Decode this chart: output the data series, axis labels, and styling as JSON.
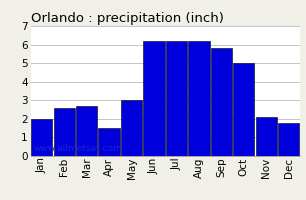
{
  "title": "Orlando : precipitation (inch)",
  "months": [
    "Jan",
    "Feb",
    "Mar",
    "Apr",
    "May",
    "Jun",
    "Jul",
    "Aug",
    "Sep",
    "Oct",
    "Nov",
    "Dec"
  ],
  "values": [
    2.0,
    2.6,
    2.7,
    1.5,
    3.0,
    6.2,
    6.2,
    6.2,
    5.8,
    5.0,
    2.1,
    1.8
  ],
  "bar_color": "#0000dd",
  "bar_edge_color": "#000000",
  "ylim": [
    0,
    7
  ],
  "yticks": [
    0,
    1,
    2,
    3,
    4,
    5,
    6,
    7
  ],
  "background_color": "#f0f0e8",
  "plot_bg_color": "#ffffff",
  "grid_color": "#bbbbbb",
  "watermark": "www.allmetsat.com",
  "title_fontsize": 9.5,
  "tick_fontsize": 7.5,
  "watermark_fontsize": 6.5
}
